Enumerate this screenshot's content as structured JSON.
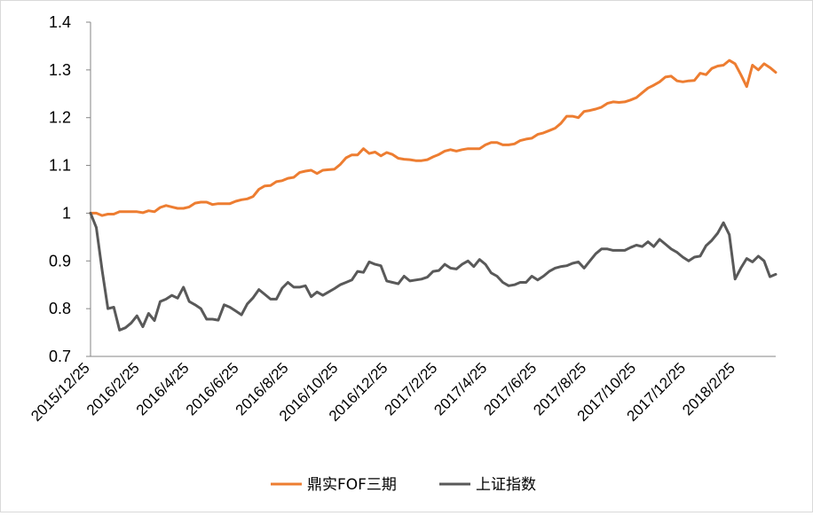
{
  "chart_data": {
    "type": "line",
    "title": "",
    "xlabel": "",
    "ylabel": "",
    "ylim": [
      0.7,
      1.4
    ],
    "yticks": [
      "0.7",
      "0.8",
      "0.9",
      "1",
      "1.1",
      "1.2",
      "1.3",
      "1.4"
    ],
    "x_tick_labels": [
      "2015/12/25",
      "2016/2/25",
      "2016/4/25",
      "2016/6/25",
      "2016/8/25",
      "2016/10/25",
      "2016/12/25",
      "2017/2/25",
      "2017/4/25",
      "2017/6/25",
      "2017/8/25",
      "2017/10/25",
      "2017/12/25",
      "2018/2/25"
    ],
    "x_start": "2015/12/25",
    "x_step_weeks": 1,
    "grid": false,
    "legend_position": "bottom",
    "series": [
      {
        "name": "鼎实FOF三期",
        "color": "#ED7D31",
        "values": [
          1.0,
          1.0,
          0.995,
          0.998,
          0.998,
          1.003,
          1.003,
          1.003,
          1.003,
          1.001,
          1.005,
          1.003,
          1.012,
          1.016,
          1.013,
          1.01,
          1.01,
          1.013,
          1.021,
          1.023,
          1.023,
          1.018,
          1.02,
          1.02,
          1.02,
          1.025,
          1.028,
          1.03,
          1.035,
          1.05,
          1.057,
          1.058,
          1.066,
          1.068,
          1.073,
          1.075,
          1.085,
          1.088,
          1.09,
          1.083,
          1.09,
          1.091,
          1.092,
          1.102,
          1.116,
          1.122,
          1.122,
          1.135,
          1.125,
          1.128,
          1.12,
          1.127,
          1.123,
          1.115,
          1.113,
          1.112,
          1.11,
          1.11,
          1.112,
          1.118,
          1.123,
          1.13,
          1.133,
          1.13,
          1.133,
          1.135,
          1.135,
          1.135,
          1.143,
          1.148,
          1.148,
          1.143,
          1.143,
          1.145,
          1.152,
          1.155,
          1.157,
          1.165,
          1.168,
          1.173,
          1.178,
          1.188,
          1.203,
          1.203,
          1.2,
          1.213,
          1.215,
          1.218,
          1.222,
          1.23,
          1.233,
          1.232,
          1.233,
          1.237,
          1.242,
          1.252,
          1.262,
          1.268,
          1.275,
          1.285,
          1.287,
          1.277,
          1.275,
          1.277,
          1.278,
          1.293,
          1.29,
          1.303,
          1.308,
          1.31,
          1.32,
          1.313,
          1.29,
          1.265,
          1.31,
          1.3,
          1.313,
          1.305,
          1.295
        ]
      },
      {
        "name": "上证指数",
        "color": "#595959",
        "values": [
          1.0,
          0.97,
          0.88,
          0.8,
          0.803,
          0.755,
          0.76,
          0.77,
          0.785,
          0.762,
          0.79,
          0.775,
          0.815,
          0.82,
          0.828,
          0.822,
          0.845,
          0.815,
          0.808,
          0.8,
          0.778,
          0.778,
          0.776,
          0.808,
          0.803,
          0.795,
          0.787,
          0.81,
          0.823,
          0.84,
          0.83,
          0.82,
          0.82,
          0.843,
          0.855,
          0.845,
          0.845,
          0.848,
          0.825,
          0.835,
          0.828,
          0.835,
          0.842,
          0.85,
          0.855,
          0.86,
          0.878,
          0.876,
          0.898,
          0.893,
          0.89,
          0.858,
          0.855,
          0.852,
          0.868,
          0.858,
          0.86,
          0.862,
          0.866,
          0.878,
          0.88,
          0.893,
          0.885,
          0.883,
          0.893,
          0.9,
          0.888,
          0.903,
          0.893,
          0.875,
          0.868,
          0.855,
          0.848,
          0.85,
          0.855,
          0.855,
          0.868,
          0.86,
          0.868,
          0.878,
          0.885,
          0.888,
          0.89,
          0.895,
          0.898,
          0.885,
          0.9,
          0.915,
          0.925,
          0.925,
          0.922,
          0.922,
          0.922,
          0.928,
          0.933,
          0.93,
          0.94,
          0.93,
          0.945,
          0.935,
          0.925,
          0.918,
          0.908,
          0.9,
          0.908,
          0.91,
          0.932,
          0.943,
          0.958,
          0.98,
          0.955,
          0.862,
          0.885,
          0.905,
          0.898,
          0.91,
          0.9,
          0.867,
          0.872
        ]
      }
    ]
  }
}
